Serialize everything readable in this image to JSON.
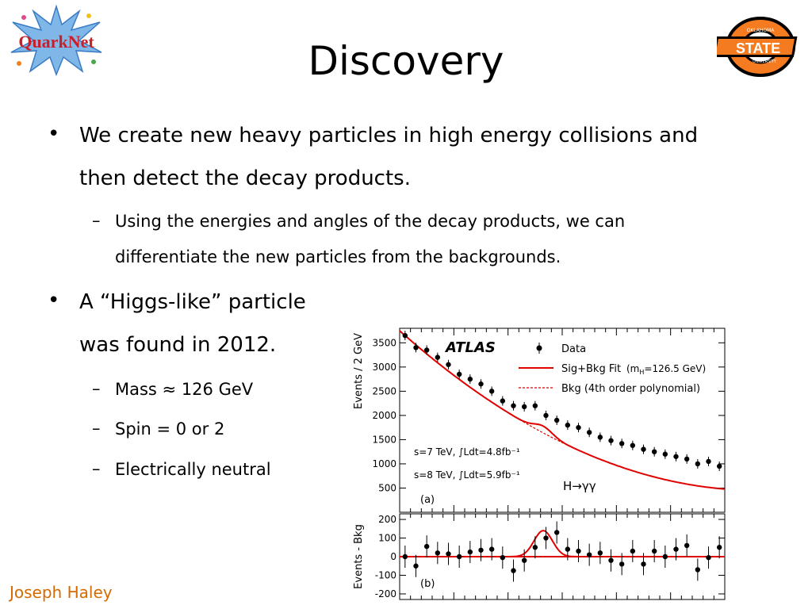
{
  "slide": {
    "title": "Discovery",
    "footer": "Joseph Haley",
    "logos": {
      "left_text": "QuarkNet",
      "right_text": "STATE",
      "right_top_text": "OKLAHOMA",
      "right_bottom_text": "UNIVERSITY"
    }
  },
  "bullets": [
    {
      "lines": [
        "We create new heavy particles in high energy collisions and",
        "then detect the decay products."
      ]
    },
    {
      "lines": [
        "A “Higgs-like” particle",
        "was found in 2012."
      ]
    }
  ],
  "sub_bullets": [
    {
      "lines": [
        "Using the energies and angles of the decay products, we can",
        "differentiate the new particles from the backgrounds."
      ]
    },
    {
      "lines": [
        "Mass ≈ 126 GeV"
      ]
    },
    {
      "lines": [
        "Spin = 0 or 2"
      ]
    },
    {
      "lines": [
        "Electrically neutral"
      ]
    }
  ],
  "chart_data": [
    {
      "type": "scatter",
      "title": "ATLAS",
      "panel_label": "(a)",
      "ylabel": "Events / 2 GeV",
      "ylim": [
        0,
        3800
      ],
      "yticks": [
        "500",
        "1000",
        "1500",
        "2000",
        "2500",
        "3000",
        "3500"
      ],
      "ytick_values": [
        500,
        1000,
        1500,
        2000,
        2500,
        3000,
        3500
      ],
      "xlim": [
        100,
        160
      ],
      "legend": {
        "placement": "top-right",
        "data": "Data",
        "fit": "Sig+Bkg Fit",
        "fit_note": "(m",
        "fit_note_sub": "H",
        "fit_note_end": "=126.5 GeV)",
        "bkg": "Bkg (4th order polynomial)"
      },
      "annotations": [
        "s=7 TeV, ∫Ldt=4.8fb⁻¹",
        "s=8 TeV, ∫Ldt=5.9fb⁻¹",
        "H→γγ"
      ],
      "series": [
        {
          "name": "Data",
          "x": [
            101,
            103,
            105,
            107,
            109,
            111,
            113,
            115,
            117,
            119,
            121,
            123,
            125,
            127,
            129,
            131,
            133,
            135,
            137,
            139,
            141,
            143,
            145,
            147,
            149,
            151,
            153,
            155,
            157,
            159
          ],
          "y": [
            3650,
            3400,
            3350,
            3200,
            3050,
            2850,
            2750,
            2650,
            2500,
            2300,
            2200,
            2180,
            2200,
            2000,
            1900,
            1800,
            1750,
            1650,
            1550,
            1480,
            1420,
            1380,
            1300,
            1250,
            1200,
            1150,
            1100,
            1000,
            1050,
            950
          ]
        },
        {
          "name": "Sig+Bkg Fit"
        },
        {
          "name": "Bkg (4th order polynomial)"
        }
      ]
    },
    {
      "type": "scatter",
      "panel_label": "(b)",
      "ylabel": "Events - Bkg",
      "ylim": [
        -230,
        230
      ],
      "yticks": [
        "200",
        "100",
        "0",
        "-100",
        "-200"
      ],
      "ytick_values": [
        200,
        100,
        0,
        -100,
        -200
      ],
      "xlim": [
        100,
        160
      ],
      "series": [
        {
          "name": "Data",
          "x": [
            101,
            103,
            105,
            107,
            109,
            111,
            113,
            115,
            117,
            119,
            121,
            123,
            125,
            127,
            129,
            131,
            133,
            135,
            137,
            139,
            141,
            143,
            145,
            147,
            149,
            151,
            153,
            155,
            157,
            159
          ],
          "y": [
            0,
            -50,
            55,
            20,
            15,
            0,
            25,
            35,
            40,
            -5,
            -75,
            -20,
            50,
            100,
            130,
            40,
            30,
            10,
            20,
            -20,
            -40,
            30,
            -40,
            30,
            0,
            40,
            60,
            -70,
            -5,
            50
          ]
        }
      ]
    }
  ]
}
